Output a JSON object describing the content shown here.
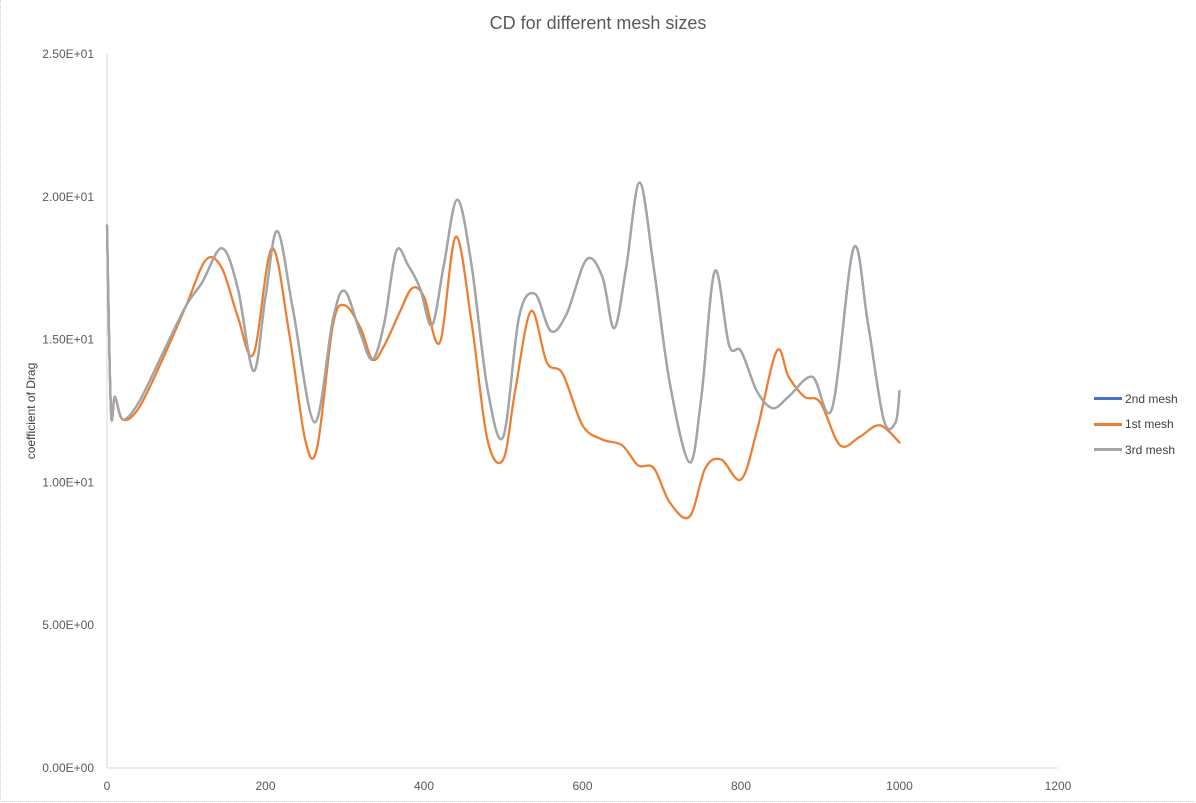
{
  "chart_data": {
    "type": "line",
    "title": "CD for different mesh sizes",
    "xlabel": "",
    "ylabel": "coefficient of Drag",
    "xlim": [
      0,
      1200
    ],
    "ylim": [
      0,
      25
    ],
    "x_ticks": [
      0,
      200,
      400,
      600,
      800,
      1000,
      1200
    ],
    "x_tick_labels": [
      "0",
      "200",
      "400",
      "600",
      "800",
      "1000",
      "1200"
    ],
    "y_ticks": [
      0,
      5,
      10,
      15,
      20,
      25
    ],
    "y_tick_labels": [
      "0.00E+00",
      "5.00E+00",
      "1.00E+01",
      "1.50E+01",
      "2.00E+01",
      "2.50E+01"
    ],
    "grid": false,
    "legend_position": "right",
    "series": [
      {
        "name": "2nd mesh",
        "color": "#4472C4",
        "x": [
          0,
          5,
          10,
          20,
          40,
          70,
          100,
          120,
          145,
          165,
          185,
          200,
          215,
          235,
          262,
          285,
          300,
          320,
          335,
          350,
          365,
          380,
          395,
          410,
          425,
          442,
          460,
          480,
          500,
          520,
          540,
          560,
          580,
          605,
          625,
          640,
          655,
          672,
          690,
          710,
          735,
          750,
          767,
          785,
          800,
          820,
          840,
          860,
          890,
          915,
          942,
          960,
          980,
          995,
          1000
        ],
        "y": [
          19.0,
          12.5,
          13.0,
          12.2,
          12.8,
          14.5,
          16.2,
          17.0,
          18.2,
          16.8,
          13.9,
          16.5,
          18.8,
          16.0,
          12.1,
          15.7,
          16.7,
          15.2,
          14.3,
          15.6,
          18.1,
          17.6,
          16.8,
          15.5,
          17.6,
          19.9,
          17.6,
          13.3,
          11.6,
          15.8,
          16.6,
          15.3,
          15.9,
          17.8,
          17.2,
          15.4,
          17.5,
          20.5,
          17.5,
          13.5,
          10.7,
          13.0,
          17.4,
          14.8,
          14.6,
          13.2,
          12.6,
          13.0,
          13.7,
          12.6,
          18.2,
          15.6,
          12.2,
          12.1,
          13.2
        ]
      },
      {
        "name": "1st mesh",
        "color": "#ED7D31",
        "x": [
          0,
          5,
          10,
          20,
          40,
          70,
          100,
          125,
          145,
          165,
          185,
          208,
          230,
          250,
          265,
          285,
          300,
          320,
          335,
          350,
          370,
          385,
          400,
          420,
          440,
          460,
          480,
          500,
          515,
          535,
          555,
          575,
          600,
          625,
          650,
          670,
          690,
          710,
          735,
          755,
          775,
          800,
          820,
          845,
          860,
          880,
          900,
          925,
          950,
          975,
          1000
        ],
        "y": [
          19.0,
          12.5,
          13.0,
          12.2,
          12.6,
          14.3,
          16.2,
          17.8,
          17.5,
          15.8,
          14.5,
          18.2,
          15.2,
          11.5,
          11.2,
          15.5,
          16.2,
          15.4,
          14.3,
          14.8,
          16.0,
          16.8,
          16.5,
          14.9,
          18.6,
          15.6,
          11.5,
          10.8,
          13.2,
          16.0,
          14.2,
          13.8,
          12.0,
          11.5,
          11.3,
          10.6,
          10.5,
          9.3,
          8.8,
          10.5,
          10.8,
          10.1,
          11.8,
          14.6,
          13.7,
          13.0,
          12.8,
          11.3,
          11.6,
          12.0,
          11.4
        ]
      },
      {
        "name": "3rd mesh",
        "color": "#A5A5A5",
        "x": [
          0,
          5,
          10,
          20,
          40,
          70,
          100,
          120,
          145,
          165,
          185,
          200,
          215,
          235,
          262,
          285,
          300,
          320,
          335,
          350,
          365,
          380,
          395,
          410,
          425,
          442,
          460,
          480,
          500,
          520,
          540,
          560,
          580,
          605,
          625,
          640,
          655,
          672,
          690,
          710,
          735,
          750,
          767,
          785,
          800,
          820,
          840,
          860,
          890,
          915,
          942,
          960,
          980,
          995,
          1000
        ],
        "y": [
          19.0,
          12.5,
          13.0,
          12.2,
          12.8,
          14.5,
          16.2,
          17.0,
          18.2,
          16.8,
          13.9,
          16.5,
          18.8,
          16.0,
          12.1,
          15.7,
          16.7,
          15.2,
          14.3,
          15.6,
          18.1,
          17.6,
          16.8,
          15.5,
          17.6,
          19.9,
          17.6,
          13.3,
          11.6,
          15.8,
          16.6,
          15.3,
          15.9,
          17.8,
          17.2,
          15.4,
          17.5,
          20.5,
          17.5,
          13.5,
          10.7,
          13.0,
          17.4,
          14.8,
          14.6,
          13.2,
          12.6,
          13.0,
          13.7,
          12.6,
          18.2,
          15.6,
          12.2,
          12.1,
          13.2
        ]
      }
    ]
  }
}
